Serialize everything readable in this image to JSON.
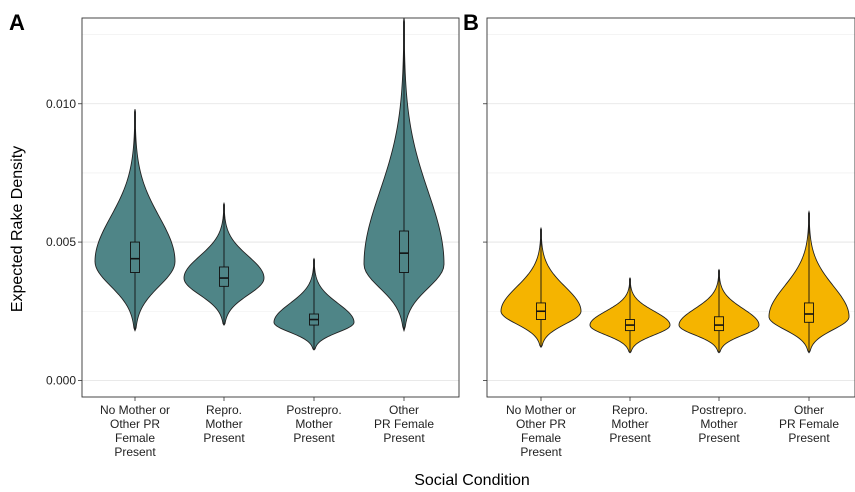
{
  "figure": {
    "xlabel": "Social Condition",
    "ylabel": "Expected Rake Density"
  },
  "chart_data": [
    {
      "type": "violin",
      "panel_label": "A",
      "color": "#4f8587",
      "ylim": [
        -0.0006,
        0.0131
      ],
      "yticks": [
        0.0,
        0.005,
        0.01
      ],
      "ytick_labels": [
        "0.000",
        "0.005",
        "0.010"
      ],
      "grid": true,
      "categories": [
        {
          "lines": [
            "No Mother or",
            "Other PR",
            "Female",
            "Present"
          ]
        },
        {
          "lines": [
            "Repro.",
            "Mother",
            "Present"
          ]
        },
        {
          "lines": [
            "Postrepro.",
            "Mother",
            "Present"
          ]
        },
        {
          "lines": [
            "Other",
            "PR Female",
            "Present"
          ]
        }
      ],
      "distributions": [
        {
          "min": 0.0018,
          "max": 0.0098,
          "q1": 0.0039,
          "median": 0.0044,
          "q3": 0.005,
          "mode": 0.0043
        },
        {
          "min": 0.002,
          "max": 0.0064,
          "q1": 0.0034,
          "median": 0.0037,
          "q3": 0.0041,
          "mode": 0.0037
        },
        {
          "min": 0.0011,
          "max": 0.0044,
          "q1": 0.002,
          "median": 0.0022,
          "q3": 0.0024,
          "mode": 0.0021
        },
        {
          "min": 0.0018,
          "max": 0.0131,
          "q1": 0.0039,
          "median": 0.0046,
          "q3": 0.0054,
          "mode": 0.0042
        }
      ]
    },
    {
      "type": "violin",
      "panel_label": "B",
      "color": "#f5b400",
      "ylim": [
        -0.0006,
        0.0131
      ],
      "yticks": [
        0.0,
        0.005,
        0.01
      ],
      "ytick_labels": [
        "",
        "",
        ""
      ],
      "grid": true,
      "categories": [
        {
          "lines": [
            "No Mother or",
            "Other PR",
            "Female",
            "Present"
          ]
        },
        {
          "lines": [
            "Repro.",
            "Mother",
            "Present"
          ]
        },
        {
          "lines": [
            "Postrepro.",
            "Mother",
            "Present"
          ]
        },
        {
          "lines": [
            "Other",
            "PR Female",
            "Present"
          ]
        }
      ],
      "distributions": [
        {
          "min": 0.0012,
          "max": 0.0055,
          "q1": 0.0022,
          "median": 0.0025,
          "q3": 0.0028,
          "mode": 0.0025
        },
        {
          "min": 0.001,
          "max": 0.0037,
          "q1": 0.0018,
          "median": 0.002,
          "q3": 0.0022,
          "mode": 0.002
        },
        {
          "min": 0.001,
          "max": 0.004,
          "q1": 0.0018,
          "median": 0.002,
          "q3": 0.0023,
          "mode": 0.002
        },
        {
          "min": 0.001,
          "max": 0.0061,
          "q1": 0.0021,
          "median": 0.0024,
          "q3": 0.0028,
          "mode": 0.0023
        }
      ]
    }
  ]
}
